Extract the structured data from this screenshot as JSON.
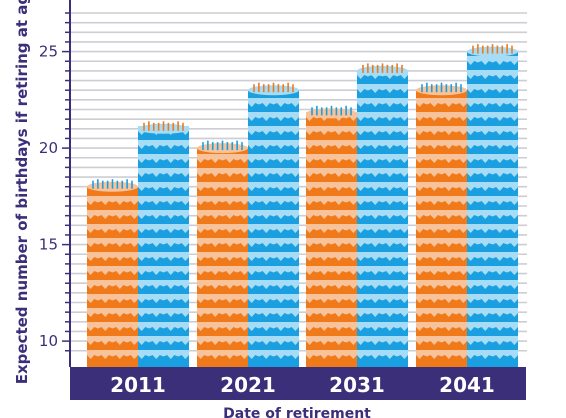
{
  "chart_data": {
    "type": "bar",
    "title": "",
    "xlabel": "Date of retirement",
    "ylabel": "Expected number of  birthdays if retiring at age",
    "categories": [
      "2011",
      "2021",
      "2031",
      "2041"
    ],
    "series": [
      {
        "values": [
          18,
          20,
          21.8,
          23
        ]
      },
      {
        "values": [
          21,
          23,
          24,
          25
        ]
      }
    ],
    "ylim": [
      9,
      27
    ],
    "yticks": [
      10,
      15,
      20,
      25
    ],
    "grid": true,
    "legend": "none",
    "style": "stacked birthday-cake layers with candles on top"
  },
  "colors": {
    "axis": "#3b2f7a",
    "grid": "#cdcdd4",
    "category_band": "#3b2f7a",
    "orange_body": "#f07a1a",
    "orange_icing": "#f8c39a",
    "orange_candle": "#1aa0e0",
    "blue_body": "#1aa0e0",
    "blue_icing": "#a6dcf5",
    "blue_candle": "#f07a1a"
  }
}
